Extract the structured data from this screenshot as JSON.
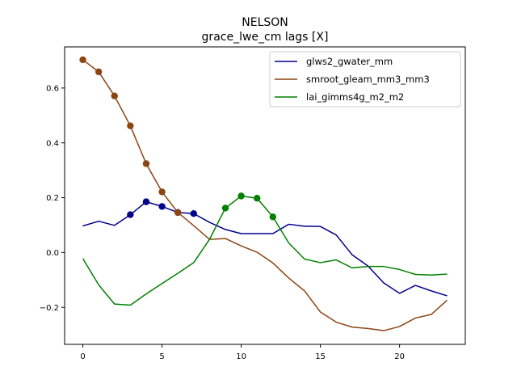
{
  "chart_data": {
    "type": "line",
    "title": "NELSON",
    "subtitle": "grace_lwe_cm lags [X]",
    "xlabel": "",
    "ylabel": "",
    "xlim": [
      -1.15,
      24.15
    ],
    "ylim": [
      -0.335,
      0.75
    ],
    "x_ticks": [
      0,
      5,
      10,
      15,
      20
    ],
    "x_tick_labels": [
      "0",
      "5",
      "10",
      "15",
      "20"
    ],
    "y_ticks": [
      -0.2,
      0.0,
      0.2,
      0.4,
      0.6
    ],
    "y_tick_labels": [
      "−0.2",
      "0.0",
      "0.2",
      "0.4",
      "0.6"
    ],
    "grid": false,
    "legend_position": "top-right",
    "x": [
      0,
      1,
      2,
      3,
      4,
      5,
      6,
      7,
      8,
      9,
      10,
      11,
      12,
      13,
      14,
      15,
      16,
      17,
      18,
      19,
      20,
      21,
      22,
      23
    ],
    "series": [
      {
        "name": "glws2_gwater_mm",
        "color": "#00008b",
        "values": [
          0.097,
          0.114,
          0.099,
          0.138,
          0.185,
          0.168,
          0.146,
          0.142,
          0.11,
          0.084,
          0.069,
          0.069,
          0.069,
          0.103,
          0.096,
          0.095,
          0.064,
          -0.008,
          -0.049,
          -0.111,
          -0.149,
          -0.12,
          -0.14,
          -0.158
        ],
        "marker_indices": [
          3,
          4,
          5,
          6,
          7
        ]
      },
      {
        "name": "smroot_gleam_mm3_mm3",
        "color": "#8b4513",
        "values": [
          0.703,
          0.659,
          0.571,
          0.462,
          0.324,
          0.221,
          0.146,
          0.098,
          0.048,
          0.051,
          0.024,
          0.001,
          -0.038,
          -0.093,
          -0.14,
          -0.217,
          -0.254,
          -0.272,
          -0.277,
          -0.285,
          -0.27,
          -0.239,
          -0.226,
          -0.174
        ],
        "marker_indices": [
          0,
          1,
          2,
          3,
          4,
          5,
          6
        ]
      },
      {
        "name": "lai_gimms4g_m2_m2",
        "color": "#008000",
        "values": [
          -0.022,
          -0.118,
          -0.188,
          -0.192,
          -0.151,
          -0.113,
          -0.076,
          -0.037,
          0.048,
          0.162,
          0.206,
          0.198,
          0.13,
          0.035,
          -0.024,
          -0.037,
          -0.027,
          -0.056,
          -0.051,
          -0.051,
          -0.062,
          -0.08,
          -0.082,
          -0.079
        ],
        "marker_indices": [
          9,
          10,
          11,
          12
        ]
      }
    ]
  }
}
